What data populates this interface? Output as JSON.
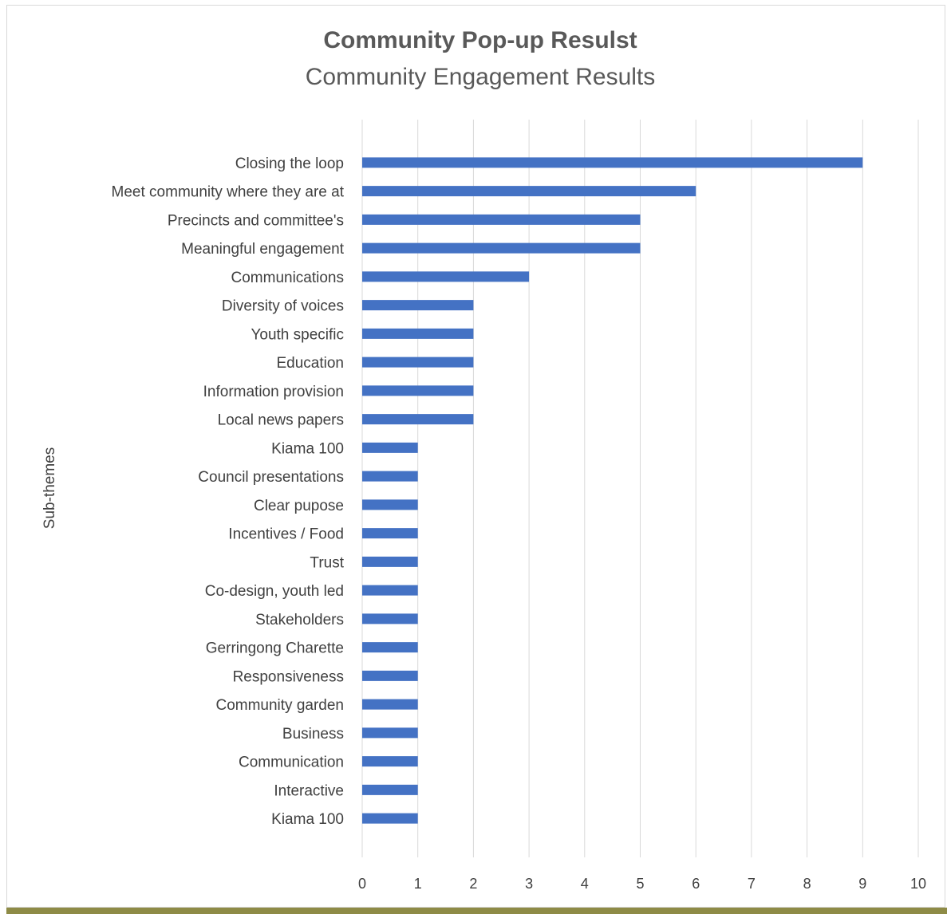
{
  "chart_data": {
    "type": "bar",
    "orientation": "horizontal",
    "title": "Community Pop-up Resulst",
    "subtitle": "Community Engagement Results",
    "ylabel": "Sub-themes",
    "xlabel": "",
    "xlim": [
      0,
      10
    ],
    "x_ticks": [
      "0",
      "1",
      "2",
      "3",
      "4",
      "5",
      "6",
      "7",
      "8",
      "9",
      "10"
    ],
    "grid": "vertical",
    "legend": "none",
    "bar_color": "#4472c4",
    "categories": [
      "Closing the loop",
      "Meet community where they are at",
      "Precincts and committee's",
      "Meaningful engagement",
      "Communications",
      "Diversity of voices",
      "Youth specific",
      "Education",
      "Information provision",
      "Local news papers",
      "Kiama 100",
      "Council presentations",
      "Clear pupose",
      "Incentives / Food",
      "Trust",
      "Co-design, youth led",
      "Stakeholders",
      "Gerringong Charette",
      "Responsiveness",
      "Community garden",
      "Business",
      "Communication",
      "Interactive",
      "Kiama 100"
    ],
    "values": [
      9,
      6,
      5,
      5,
      3,
      2,
      2,
      2,
      2,
      2,
      1,
      1,
      1,
      1,
      1,
      1,
      1,
      1,
      1,
      1,
      1,
      1,
      1,
      1
    ]
  }
}
